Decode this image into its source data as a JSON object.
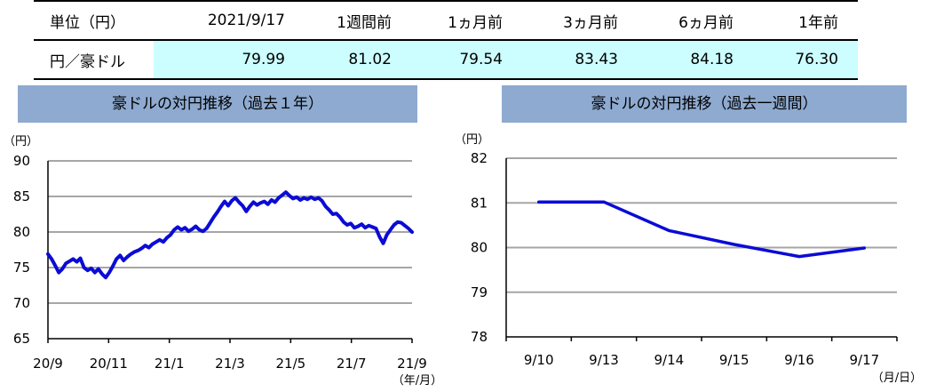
{
  "table": {
    "headers": [
      "単位（円）",
      "2021/9/17",
      "1週間前",
      "1ヵ月前",
      "3ヵ月前",
      "6ヵ月前",
      "1年前"
    ],
    "row_label": "円／豪ドル",
    "values": [
      "79.99",
      "81.02",
      "79.54",
      "83.43",
      "84.18",
      "76.30"
    ]
  },
  "colors": {
    "line": "#0b0bd6",
    "title_bg": "#8eaad0",
    "highlight": "#ccfeff",
    "grid": "#a6a6a6"
  },
  "chart_data": [
    {
      "type": "line",
      "title": "豪ドルの対円推移（過去１年）",
      "y_unit": "（円）",
      "x_unit": "（年/月）",
      "ylim": [
        65,
        90
      ],
      "yticks": [
        "90",
        "85",
        "80",
        "75",
        "70",
        "65"
      ],
      "xticks": [
        "20/9",
        "20/11",
        "21/1",
        "21/3",
        "21/5",
        "21/7",
        "21/9"
      ],
      "grid": true,
      "series": [
        {
          "values": [
            76.9,
            76.2,
            75.3,
            74.3,
            74.8,
            75.6,
            75.9,
            76.2,
            75.8,
            76.3,
            75.0,
            74.6,
            74.9,
            74.3,
            74.8,
            74.1,
            73.6,
            74.3,
            75.2,
            76.2,
            76.7,
            76.0,
            76.5,
            76.9,
            77.2,
            77.4,
            77.7,
            78.1,
            77.8,
            78.3,
            78.6,
            78.9,
            78.6,
            79.2,
            79.6,
            80.3,
            80.7,
            80.3,
            80.6,
            80.1,
            80.4,
            80.8,
            80.3,
            80.1,
            80.5,
            81.3,
            82.1,
            82.8,
            83.6,
            84.3,
            83.7,
            84.4,
            84.8,
            84.2,
            83.7,
            82.9,
            83.6,
            84.2,
            83.8,
            84.1,
            84.3,
            83.9,
            84.5,
            84.2,
            84.8,
            85.2,
            85.6,
            85.1,
            84.7,
            84.9,
            84.5,
            84.8,
            84.6,
            84.9,
            84.6,
            84.8,
            84.4,
            83.6,
            83.1,
            82.5,
            82.6,
            82.1,
            81.4,
            81.0,
            81.2,
            80.6,
            80.8,
            81.1,
            80.6,
            80.9,
            80.7,
            80.5,
            79.3,
            78.4,
            79.6,
            80.3,
            81.0,
            81.4,
            81.3,
            80.9,
            80.5,
            79.99
          ]
        }
      ]
    },
    {
      "type": "line",
      "title": "豪ドルの対円推移（過去一週間）",
      "y_unit": "（円）",
      "x_unit": "（月/日）",
      "ylim": [
        78,
        82
      ],
      "yticks": [
        "82",
        "81",
        "80",
        "79",
        "78"
      ],
      "categories": [
        "9/10",
        "9/13",
        "9/14",
        "9/15",
        "9/16",
        "9/17"
      ],
      "grid": true,
      "series": [
        {
          "values": [
            81.02,
            81.02,
            80.38,
            80.07,
            79.8,
            79.99
          ]
        }
      ]
    }
  ]
}
